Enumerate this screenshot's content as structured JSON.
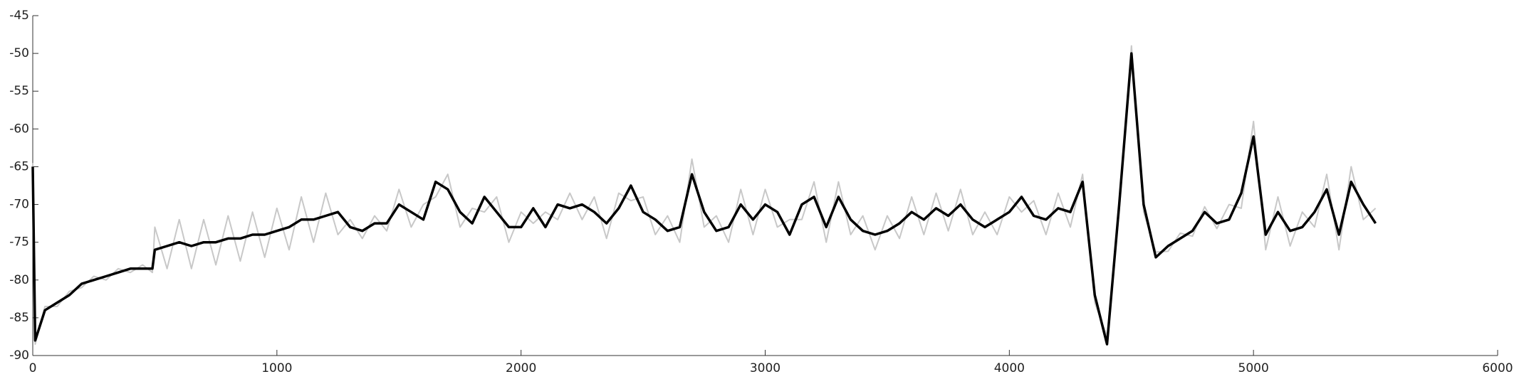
{
  "chart_data": {
    "type": "line",
    "x": [
      0,
      10,
      50,
      100,
      150,
      200,
      250,
      300,
      350,
      400,
      450,
      490,
      500,
      550,
      600,
      650,
      700,
      750,
      800,
      850,
      900,
      950,
      1000,
      1050,
      1100,
      1150,
      1200,
      1250,
      1300,
      1350,
      1400,
      1450,
      1500,
      1550,
      1600,
      1650,
      1700,
      1750,
      1800,
      1850,
      1900,
      1950,
      2000,
      2050,
      2100,
      2150,
      2200,
      2250,
      2300,
      2350,
      2400,
      2450,
      2500,
      2550,
      2600,
      2650,
      2700,
      2750,
      2800,
      2850,
      2900,
      2950,
      3000,
      3050,
      3100,
      3150,
      3200,
      3250,
      3300,
      3350,
      3400,
      3450,
      3500,
      3550,
      3600,
      3650,
      3700,
      3750,
      3800,
      3850,
      3900,
      3950,
      4000,
      4050,
      4100,
      4150,
      4200,
      4250,
      4300,
      4350,
      4400,
      4450,
      4500,
      4550,
      4600,
      4650,
      4700,
      4750,
      4800,
      4850,
      4900,
      4950,
      5000,
      5050,
      5100,
      5150,
      5200,
      5250,
      5300,
      5350,
      5400,
      5450,
      5500
    ],
    "series": [
      {
        "color": "#c8c8c8",
        "values": [
          -64.5,
          -88.5,
          -83.5,
          -83.5,
          -81.5,
          -81,
          -79.5,
          -80,
          -78.5,
          -79,
          -78,
          -79,
          -73,
          -78.5,
          -72,
          -78.5,
          -72,
          -78,
          -71.5,
          -77.5,
          -71,
          -77,
          -70.5,
          -76,
          -69,
          -75,
          -68.5,
          -74,
          -72,
          -74.5,
          -71.5,
          -73.5,
          -68,
          -73,
          -70,
          -69,
          -66,
          -73,
          -70.5,
          -71,
          -69,
          -75,
          -71,
          -72.5,
          -71,
          -72,
          -68.5,
          -72,
          -69,
          -74.5,
          -68.5,
          -69.5,
          -69,
          -74,
          -71.5,
          -75,
          -64,
          -73,
          -71.5,
          -75,
          -68,
          -74,
          -68,
          -73,
          -72,
          -72,
          -67,
          -75,
          -67,
          -74,
          -71.5,
          -76,
          -71.5,
          -74.5,
          -69,
          -74,
          -68.5,
          -73.5,
          -68,
          -74,
          -71,
          -74,
          -69,
          -71,
          -69.5,
          -74,
          -68.5,
          -73,
          -66,
          -83,
          -87.5,
          -71,
          -49,
          -71,
          -76.3,
          -76.2,
          -73.8,
          -74.2,
          -70.3,
          -73.2,
          -70,
          -70.5,
          -59,
          -76,
          -69,
          -75.5,
          -71,
          -73,
          -66,
          -76,
          -65,
          -72,
          -70.5
        ]
      },
      {
        "color": "#000000",
        "values": [
          -65,
          -88,
          -84,
          -83,
          -82,
          -80.5,
          -80,
          -79.5,
          -79,
          -78.5,
          -78.5,
          -78.5,
          -76,
          -75.5,
          -75,
          -75.5,
          -75,
          -75,
          -74.5,
          -74.5,
          -74,
          -74,
          -73.5,
          -73,
          -72,
          -72,
          -71.5,
          -71,
          -73,
          -73.5,
          -72.5,
          -72.5,
          -70,
          -71,
          -72,
          -67,
          -68,
          -71,
          -72.5,
          -69,
          -71,
          -73,
          -73,
          -70.5,
          -73,
          -70,
          -70.5,
          -70,
          -71,
          -72.5,
          -70.5,
          -67.5,
          -71,
          -72,
          -73.5,
          -73,
          -66,
          -71,
          -73.5,
          -73,
          -70,
          -72,
          -70,
          -71,
          -74,
          -70,
          -69,
          -73,
          -69,
          -72,
          -73.5,
          -74,
          -73.5,
          -72.5,
          -71,
          -72,
          -70.5,
          -71.5,
          -70,
          -72,
          -73,
          -72,
          -71,
          -69,
          -71.5,
          -72,
          -70.5,
          -71,
          -67,
          -82,
          -88.5,
          -70,
          -50,
          -70,
          -77,
          -75.5,
          -74.5,
          -73.5,
          -71,
          -72.5,
          -72,
          -68.5,
          -61,
          -74,
          -71,
          -73.5,
          -73,
          -71,
          -68,
          -74,
          -67,
          -70,
          -72.5
        ]
      }
    ],
    "xlim": [
      0,
      6000
    ],
    "xticks": [
      0,
      1000,
      2000,
      3000,
      4000,
      5000,
      6000
    ],
    "ylim": [
      -90,
      -45
    ],
    "yticks": [
      -90,
      -85,
      -80,
      -75,
      -70,
      -65,
      -60,
      -55,
      -50,
      -45
    ]
  }
}
